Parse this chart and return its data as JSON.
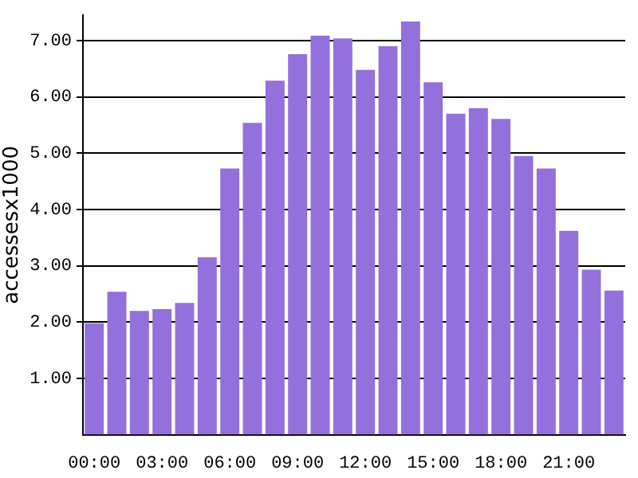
{
  "chart_data": {
    "type": "bar",
    "ylabel": "accessesx1000",
    "categories": [
      "00:00",
      null,
      null,
      "03:00",
      null,
      null,
      "06:00",
      null,
      null,
      "09:00",
      null,
      null,
      "12:00",
      null,
      null,
      "15:00",
      null,
      null,
      "18:00",
      null,
      null,
      "21:00",
      null,
      null
    ],
    "values": [
      1.98,
      2.54,
      2.2,
      2.23,
      2.34,
      3.15,
      4.73,
      5.54,
      6.29,
      6.76,
      7.09,
      7.04,
      6.48,
      6.9,
      7.34,
      6.26,
      5.7,
      5.8,
      5.61,
      4.95,
      4.73,
      3.62,
      2.93,
      2.56
    ],
    "color": "#9370db",
    "ylim": [
      0,
      7.45
    ],
    "yticks": [
      {
        "value": 1,
        "label": "1.00"
      },
      {
        "value": 2,
        "label": "2.00"
      },
      {
        "value": 3,
        "label": "3.00"
      },
      {
        "value": 4,
        "label": "4.00"
      },
      {
        "value": 5,
        "label": "5.00"
      },
      {
        "value": 6,
        "label": "6.00"
      },
      {
        "value": 7,
        "label": "7.00"
      }
    ],
    "grid": "y",
    "legend": false
  }
}
